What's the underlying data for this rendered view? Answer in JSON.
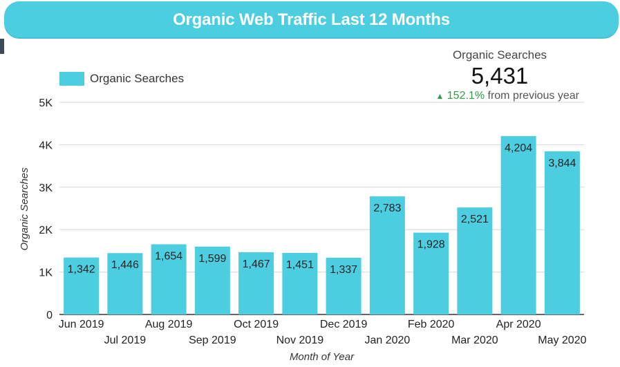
{
  "header": {
    "title": "Organic Web Traffic Last 12 Months"
  },
  "legend": {
    "label": "Organic Searches"
  },
  "scorecard": {
    "label": "Organic Searches",
    "value": "5,431",
    "delta_pct": "152.1%",
    "delta_text": "from previous year"
  },
  "colors": {
    "bar": "#4ccde0",
    "header": "#4ccde0",
    "positive": "#2f9e44"
  },
  "icons": {
    "delta": "arrow-up-icon"
  },
  "chart_data": {
    "type": "bar",
    "categories": [
      "Jun 2019",
      "Jul 2019",
      "Aug 2019",
      "Sep 2019",
      "Oct 2019",
      "Nov 2019",
      "Dec 2019",
      "Jan 2020",
      "Feb 2020",
      "Mar 2020",
      "Apr 2020",
      "May 2020"
    ],
    "series": [
      {
        "name": "Organic Searches",
        "values": [
          1342,
          1446,
          1654,
          1599,
          1467,
          1451,
          1337,
          2783,
          1928,
          2521,
          4204,
          3844
        ]
      }
    ],
    "data_labels": [
      "1,342",
      "1,446",
      "1,654",
      "1,599",
      "1,467",
      "1,451",
      "1,337",
      "2,783",
      "1,928",
      "2,521",
      "4,204",
      "3,844"
    ],
    "xlabel": "Month of Year",
    "ylabel": "Organic Searches",
    "ylim": [
      0,
      5000
    ],
    "yticks": [
      0,
      1000,
      2000,
      3000,
      4000,
      5000
    ],
    "ytick_labels": [
      "0",
      "1K",
      "2K",
      "3K",
      "4K",
      "5K"
    ],
    "grid": true,
    "legend_position": "top-left"
  }
}
